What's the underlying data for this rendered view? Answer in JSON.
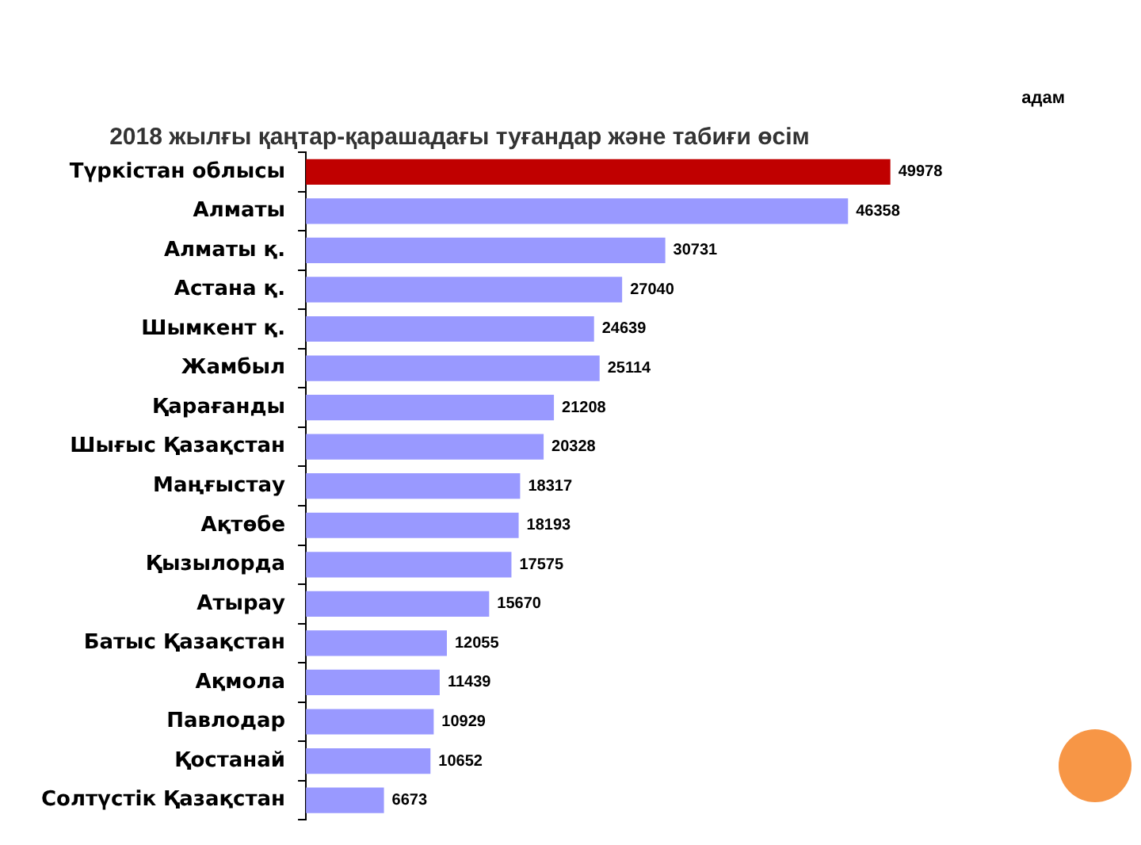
{
  "chart_data": {
    "type": "bar",
    "orientation": "horizontal",
    "title": "2018 жылғы қаңтар-қарашадағы туғандар және табиғи өсім",
    "annotations": [
      "адам"
    ],
    "categories": [
      "Түркістан облысы",
      "Алматы",
      "Алматы қ.",
      "Астана қ.",
      "Шымкент қ.",
      "Жамбыл",
      "Қарағанды",
      "Шығыс Қазақстан",
      "Маңғыстау",
      "Ақтөбе",
      "Қызылорда",
      "Атырау",
      "Батыс Қазақстан",
      "Ақмола",
      "Павлодар",
      "Қостанай",
      "Солтүстік Қазақстан"
    ],
    "values": [
      49978,
      46358,
      30731,
      27040,
      24639,
      25114,
      21208,
      20328,
      18317,
      18193,
      17575,
      15670,
      12055,
      11439,
      10929,
      10652,
      6673
    ],
    "colors": [
      "#c00000",
      "#9999ff",
      "#9999ff",
      "#9999ff",
      "#9999ff",
      "#9999ff",
      "#9999ff",
      "#9999ff",
      "#9999ff",
      "#9999ff",
      "#9999ff",
      "#9999ff",
      "#9999ff",
      "#9999ff",
      "#9999ff",
      "#9999ff",
      "#9999ff"
    ],
    "data_labels": true,
    "grid": false,
    "legend": false
  }
}
